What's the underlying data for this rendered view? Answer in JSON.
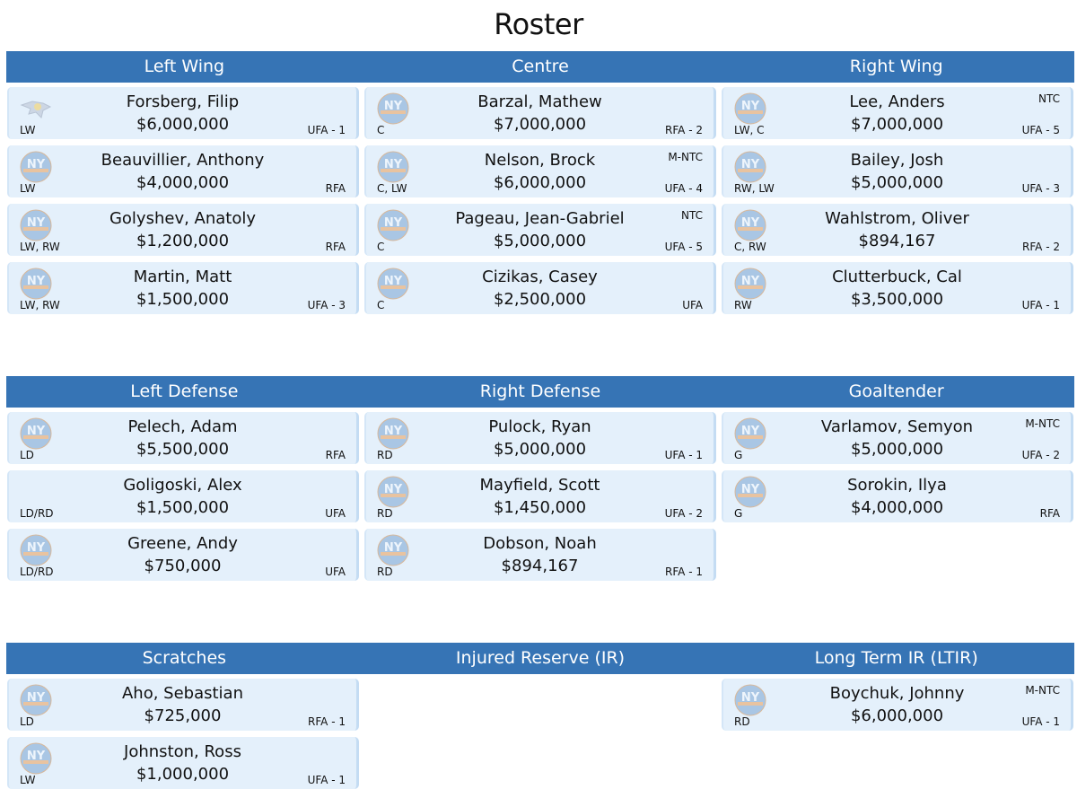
{
  "page_title": "Roster",
  "colors": {
    "header": "#3674b5",
    "card": "#e4f0fb"
  },
  "sections": [
    {
      "headers": [
        "Left Wing",
        "Centre",
        "Right Wing"
      ],
      "columns": [
        [
          {
            "name": "Forsberg, Filip",
            "salary": "$6,000,000",
            "pos": "LW",
            "status": "UFA - 1",
            "clause": "",
            "logo": "predators-logo"
          },
          {
            "name": "Beauvillier, Anthony",
            "salary": "$4,000,000",
            "pos": "LW",
            "status": "RFA",
            "clause": "",
            "logo": "islanders-logo"
          },
          {
            "name": "Golyshev, Anatoly",
            "salary": "$1,200,000",
            "pos": "LW, RW",
            "status": "RFA",
            "clause": "",
            "logo": "islanders-logo"
          },
          {
            "name": "Martin, Matt",
            "salary": "$1,500,000",
            "pos": "LW, RW",
            "status": "UFA - 3",
            "clause": "",
            "logo": "islanders-logo"
          }
        ],
        [
          {
            "name": "Barzal, Mathew",
            "salary": "$7,000,000",
            "pos": "C",
            "status": "RFA - 2",
            "clause": "",
            "logo": "islanders-logo"
          },
          {
            "name": "Nelson, Brock",
            "salary": "$6,000,000",
            "pos": "C, LW",
            "status": "UFA - 4",
            "clause": "M-NTC",
            "logo": "islanders-logo"
          },
          {
            "name": "Pageau, Jean-Gabriel",
            "salary": "$5,000,000",
            "pos": "C",
            "status": "UFA - 5",
            "clause": "NTC",
            "logo": "islanders-logo"
          },
          {
            "name": "Cizikas, Casey",
            "salary": "$2,500,000",
            "pos": "C",
            "status": "UFA",
            "clause": "",
            "logo": "islanders-logo"
          }
        ],
        [
          {
            "name": "Lee, Anders",
            "salary": "$7,000,000",
            "pos": "LW, C",
            "status": "UFA - 5",
            "clause": "NTC",
            "logo": "islanders-logo"
          },
          {
            "name": "Bailey, Josh",
            "salary": "$5,000,000",
            "pos": "RW, LW",
            "status": "UFA - 3",
            "clause": "",
            "logo": "islanders-logo"
          },
          {
            "name": "Wahlstrom, Oliver",
            "salary": "$894,167",
            "pos": "C, RW",
            "status": "RFA - 2",
            "clause": "",
            "logo": "islanders-logo"
          },
          {
            "name": "Clutterbuck, Cal",
            "salary": "$3,500,000",
            "pos": "RW",
            "status": "UFA - 1",
            "clause": "",
            "logo": "islanders-logo"
          }
        ]
      ]
    },
    {
      "headers": [
        "Left Defense",
        "Right Defense",
        "Goaltender"
      ],
      "columns": [
        [
          {
            "name": "Pelech, Adam",
            "salary": "$5,500,000",
            "pos": "LD",
            "status": "RFA",
            "clause": "",
            "logo": "islanders-logo"
          },
          {
            "name": "Goligoski, Alex",
            "salary": "$1,500,000",
            "pos": "LD/RD",
            "status": "UFA",
            "clause": "",
            "logo": ""
          },
          {
            "name": "Greene, Andy",
            "salary": "$750,000",
            "pos": "LD/RD",
            "status": "UFA",
            "clause": "",
            "logo": "islanders-logo"
          }
        ],
        [
          {
            "name": "Pulock, Ryan",
            "salary": "$5,000,000",
            "pos": "RD",
            "status": "UFA - 1",
            "clause": "",
            "logo": "islanders-logo"
          },
          {
            "name": "Mayfield, Scott",
            "salary": "$1,450,000",
            "pos": "RD",
            "status": "UFA - 2",
            "clause": "",
            "logo": "islanders-logo"
          },
          {
            "name": "Dobson, Noah",
            "salary": "$894,167",
            "pos": "RD",
            "status": "RFA - 1",
            "clause": "",
            "logo": "islanders-logo"
          }
        ],
        [
          {
            "name": "Varlamov, Semyon",
            "salary": "$5,000,000",
            "pos": "G",
            "status": "UFA - 2",
            "clause": "M-NTC",
            "logo": "islanders-logo"
          },
          {
            "name": "Sorokin, Ilya",
            "salary": "$4,000,000",
            "pos": "G",
            "status": "RFA",
            "clause": "",
            "logo": "islanders-logo"
          }
        ]
      ]
    },
    {
      "headers": [
        "Scratches",
        "Injured Reserve (IR)",
        "Long Term IR (LTIR)"
      ],
      "columns": [
        [
          {
            "name": "Aho, Sebastian",
            "salary": "$725,000",
            "pos": "LD",
            "status": "RFA - 1",
            "clause": "",
            "logo": "islanders-logo"
          },
          {
            "name": "Johnston, Ross",
            "salary": "$1,000,000",
            "pos": "LW",
            "status": "UFA - 1",
            "clause": "",
            "logo": "islanders-logo"
          }
        ],
        [],
        [
          {
            "name": "Boychuk, Johnny",
            "salary": "$6,000,000",
            "pos": "RD",
            "status": "UFA - 1",
            "clause": "M-NTC",
            "logo": "islanders-logo"
          }
        ]
      ]
    }
  ]
}
